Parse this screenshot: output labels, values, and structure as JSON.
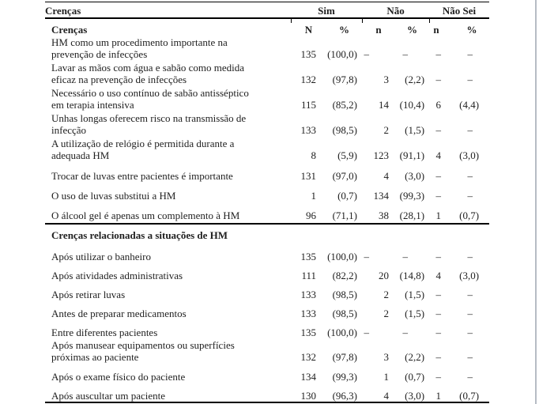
{
  "colors": {
    "text": "#1f1f1f",
    "rule": "#000000",
    "window_edge": "#b6bcc4"
  },
  "table": {
    "header": {
      "label": "Crenças",
      "groups": [
        "Sim",
        "Não",
        "Não Sei"
      ]
    },
    "subheader": {
      "label": "Crenças",
      "cols": [
        "N",
        "%",
        "n",
        "%",
        "n",
        "%"
      ]
    },
    "sections": [
      {
        "title": "",
        "rows": [
          {
            "label": [
              "HM como um procedimento importante na",
              "prevenção de infecções"
            ],
            "values": [
              "135",
              "(100,0)",
              "–",
              "–",
              "–",
              "–"
            ]
          },
          {
            "label": [
              "Lavar as mãos com água e sabão como medida",
              "eficaz na prevenção de infecções"
            ],
            "values": [
              "132",
              "(97,8)",
              "3",
              "(2,2)",
              "–",
              "–"
            ]
          },
          {
            "label": [
              "Necessário o uso contínuo de sabão antisséptico",
              "em terapia intensiva"
            ],
            "values": [
              "115",
              "(85,2)",
              "14",
              "(10,4)",
              "6",
              "(4,4)"
            ]
          },
          {
            "label": [
              "Unhas longas oferecem risco na transmissão de",
              "infecção"
            ],
            "values": [
              "133",
              "(98,5)",
              "2",
              "(1,5)",
              "–",
              "–"
            ]
          },
          {
            "label": [
              "A utilização de relógio é permitida durante a",
              "adequada HM"
            ],
            "values": [
              "8",
              "(5,9)",
              "123",
              "(91,1)",
              "4",
              "(3,0)"
            ]
          },
          {
            "label": [
              "Trocar de luvas entre pacientes é importante"
            ],
            "values": [
              "131",
              "(97,0)",
              "4",
              "(3,0)",
              "–",
              "–"
            ]
          },
          {
            "label": [
              "O uso de luvas substitui a HM"
            ],
            "values": [
              "1",
              "(0,7)",
              "134",
              "(99,3)",
              "–",
              "–"
            ]
          },
          {
            "label": [
              "O álcool gel é apenas um complemento à HM"
            ],
            "values": [
              "96",
              "(71,1)",
              "38",
              "(28,1)",
              "1",
              "(0,7)"
            ]
          }
        ]
      },
      {
        "title": "Crenças relacionadas a situações de HM",
        "rows": [
          {
            "label": [
              "Após utilizar o banheiro"
            ],
            "values": [
              "135",
              "(100,0)",
              "–",
              "–",
              "–",
              "–"
            ]
          },
          {
            "label": [
              "Após atividades administrativas"
            ],
            "values": [
              "111",
              "(82,2)",
              "20",
              "(14,8)",
              "4",
              "(3,0)"
            ]
          },
          {
            "label": [
              "Após retirar luvas"
            ],
            "values": [
              "133",
              "(98,5)",
              "2",
              "(1,5)",
              "–",
              "–"
            ]
          },
          {
            "label": [
              "Antes de preparar medicamentos"
            ],
            "values": [
              "133",
              "(98,5)",
              "2",
              "(1,5)",
              "–",
              "–"
            ]
          },
          {
            "label": [
              "Entre diferentes pacientes"
            ],
            "values": [
              "135",
              "(100,0)",
              "–",
              "–",
              "–",
              "–"
            ]
          },
          {
            "label": [
              "Após manusear equipamentos ou superfícies",
              "próximas ao paciente"
            ],
            "values": [
              "132",
              "(97,8)",
              "3",
              "(2,2)",
              "–",
              "–"
            ]
          },
          {
            "label": [
              "Após o exame físico do paciente"
            ],
            "values": [
              "134",
              "(99,3)",
              "1",
              "(0,7)",
              "–",
              "–"
            ]
          },
          {
            "label": [
              "Após auscultar um paciente"
            ],
            "values": [
              "130",
              "(96,3)",
              "4",
              "(3,0)",
              "1",
              "(0,7)"
            ]
          }
        ]
      }
    ]
  }
}
